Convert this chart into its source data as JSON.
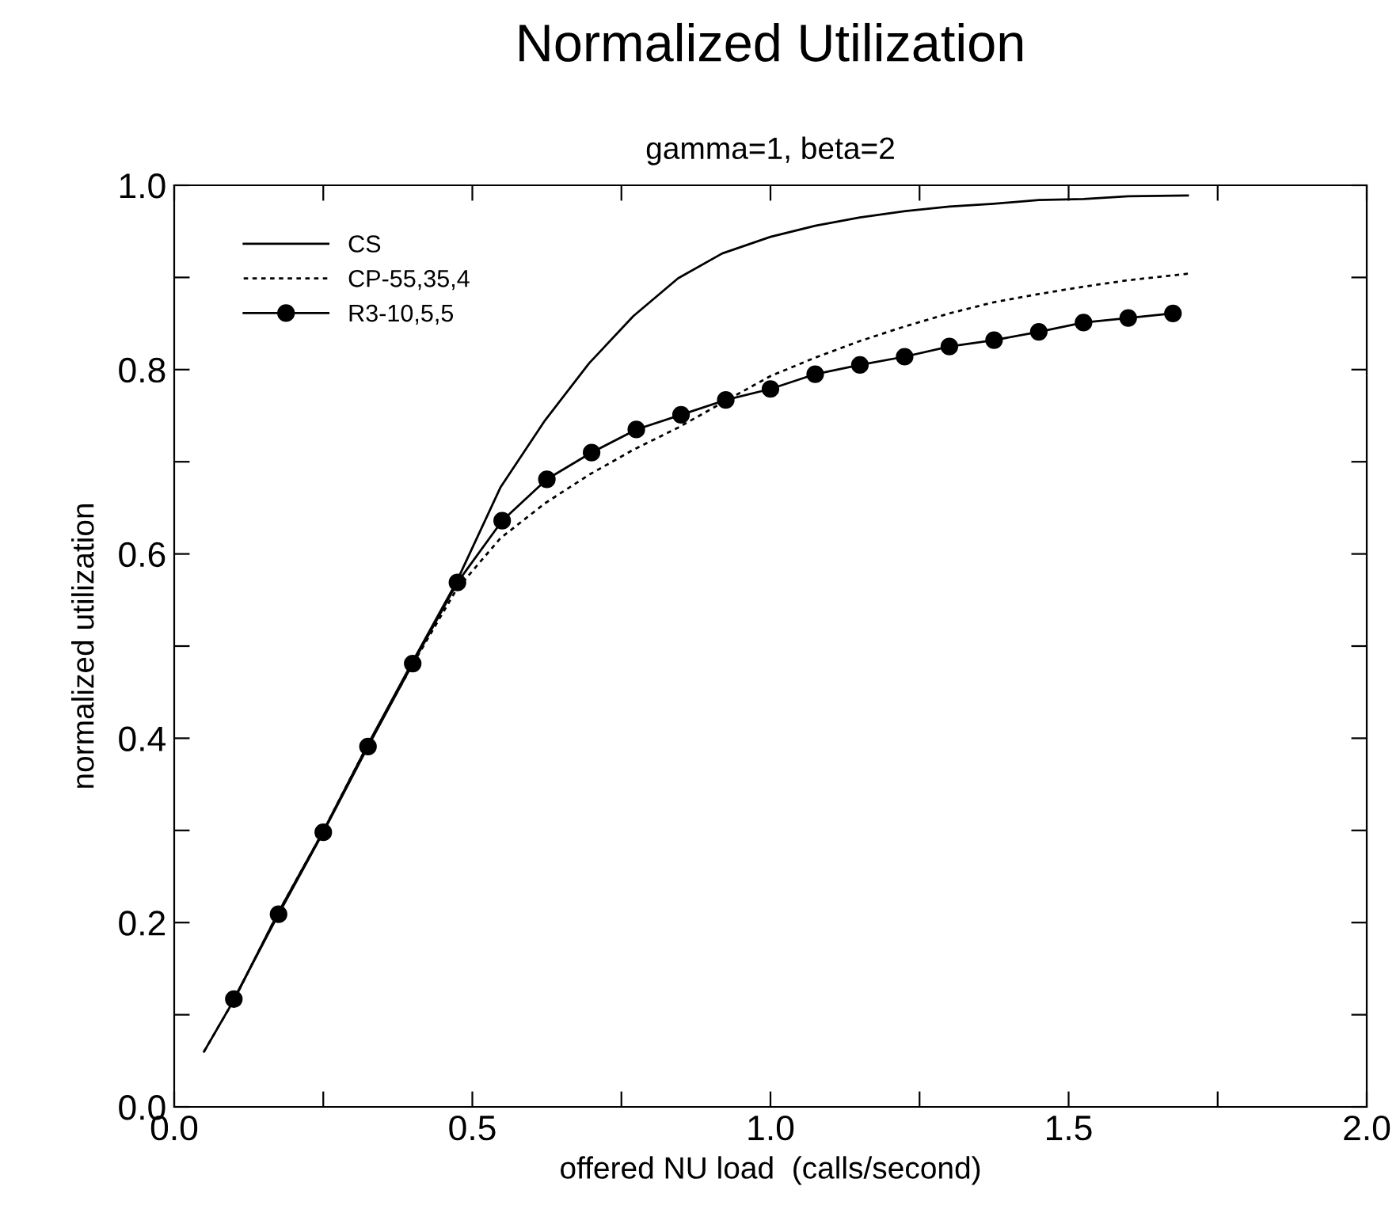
{
  "chart_data": {
    "type": "line",
    "title": "Normalized Utilization",
    "subtitle": "gamma=1, beta=2",
    "xlabel": "offered NU load  (calls/second)",
    "ylabel": "normalized utilization",
    "xlim": [
      0,
      2
    ],
    "ylim": [
      0,
      1
    ],
    "xticks": [
      {
        "value": 0,
        "label": "0.0"
      },
      {
        "value": 0.25,
        "label": null
      },
      {
        "value": 0.5,
        "label": "0.5"
      },
      {
        "value": 0.75,
        "label": null
      },
      {
        "value": 1,
        "label": "1.0"
      },
      {
        "value": 1.25,
        "label": null
      },
      {
        "value": 1.5,
        "label": "1.5"
      },
      {
        "value": 1.75,
        "label": null
      },
      {
        "value": 2,
        "label": "2.0"
      }
    ],
    "yticks": [
      {
        "value": 0,
        "label": "0.0"
      },
      {
        "value": 0.1,
        "label": null
      },
      {
        "value": 0.2,
        "label": "0.2"
      },
      {
        "value": 0.3,
        "label": null
      },
      {
        "value": 0.4,
        "label": "0.4"
      },
      {
        "value": 0.5,
        "label": null
      },
      {
        "value": 0.6,
        "label": "0.6"
      },
      {
        "value": 0.7,
        "label": null
      },
      {
        "value": 0.8,
        "label": "0.8"
      },
      {
        "value": 0.9,
        "label": null
      },
      {
        "value": 1,
        "label": "1.0"
      }
    ],
    "grid": false,
    "legend": "top left",
    "series": [
      {
        "name": "CS",
        "color": "#000000",
        "line_style": "solid",
        "marker": "none",
        "x": [
          0.05,
          0.101,
          0.173,
          0.249,
          0.323,
          0.398,
          0.473,
          0.547,
          0.622,
          0.696,
          0.77,
          0.845,
          0.919,
          1.0,
          1.075,
          1.15,
          1.226,
          1.3,
          1.374,
          1.45,
          1.525,
          1.6,
          1.7
        ],
        "values": [
          0.06,
          0.117,
          0.209,
          0.298,
          0.391,
          0.481,
          0.569,
          0.672,
          0.745,
          0.807,
          0.858,
          0.899,
          0.926,
          0.944,
          0.956,
          0.965,
          0.972,
          0.977,
          0.98,
          0.984,
          0.985,
          0.988,
          0.989
        ]
      },
      {
        "name": "CP-55,35,4",
        "color": "#000000",
        "line_style": "dotted",
        "marker": "none",
        "x": [
          0.05,
          0.101,
          0.173,
          0.249,
          0.323,
          0.398,
          0.473,
          0.547,
          0.622,
          0.696,
          0.77,
          0.845,
          0.919,
          1.0,
          1.075,
          1.15,
          1.226,
          1.3,
          1.374,
          1.45,
          1.525,
          1.6,
          1.7
        ],
        "values": [
          0.06,
          0.117,
          0.209,
          0.298,
          0.391,
          0.478,
          0.561,
          0.617,
          0.655,
          0.686,
          0.713,
          0.737,
          0.764,
          0.793,
          0.813,
          0.831,
          0.847,
          0.861,
          0.873,
          0.882,
          0.89,
          0.897,
          0.904
        ]
      },
      {
        "name": "R3-10,5,5",
        "color": "#000000",
        "line_style": "solid",
        "marker": "circle",
        "x": [
          0.1,
          0.175,
          0.25,
          0.325,
          0.4,
          0.475,
          0.55,
          0.625,
          0.7,
          0.775,
          0.85,
          0.925,
          1.0,
          1.075,
          1.15,
          1.225,
          1.3,
          1.375,
          1.45,
          1.525,
          1.6,
          1.675
        ],
        "values": [
          0.117,
          0.209,
          0.298,
          0.391,
          0.481,
          0.569,
          0.636,
          0.681,
          0.71,
          0.735,
          0.751,
          0.767,
          0.779,
          0.795,
          0.805,
          0.814,
          0.825,
          0.832,
          0.841,
          0.851,
          0.856,
          0.861
        ]
      }
    ]
  }
}
